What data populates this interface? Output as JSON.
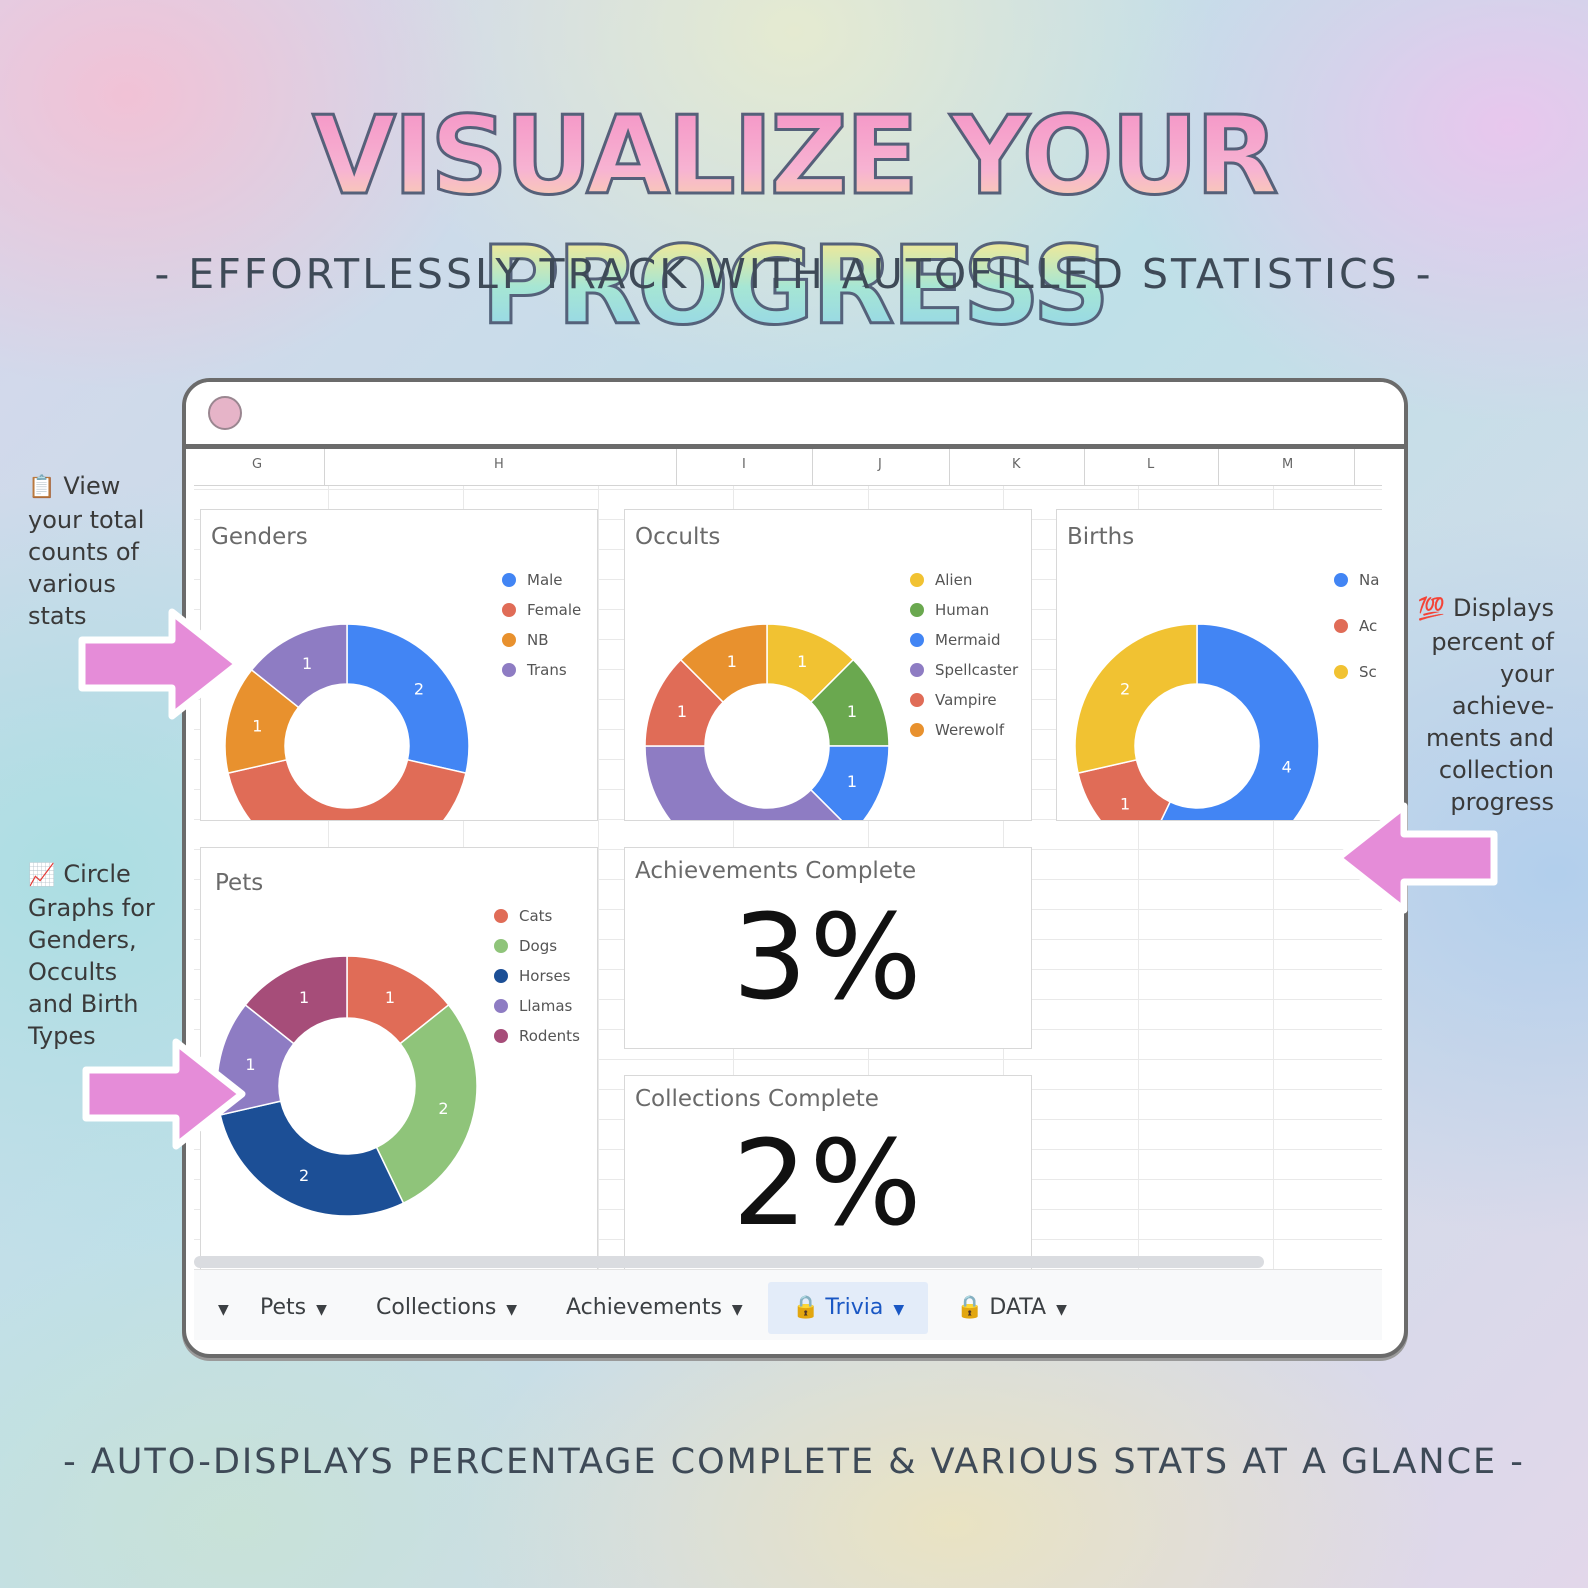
{
  "headline": "VISUALIZE YOUR PROGRESS",
  "subheadline": "- EFFORTLESSLY TRACK WITH AUTOFILLED STATISTICS -",
  "footer": "- AUTO-DISPLAYS PERCENTAGE COMPLETE & VARIOUS STATS AT A GLANCE -",
  "notes": {
    "view": {
      "icon": "clipboard-icon",
      "lines": [
        "View",
        "your total",
        "counts of",
        "various",
        "stats"
      ]
    },
    "circle": {
      "icon": "chart-increasing-icon",
      "lines": [
        "Circle",
        "Graphs for",
        "Genders,",
        "Occults",
        "and Birth",
        "Types"
      ]
    },
    "displays": {
      "icon": "hundred-points-icon",
      "lines": [
        "Displays",
        "percent of",
        "your",
        "achieve-",
        "ments and",
        "collection",
        "progress"
      ]
    }
  },
  "sheet": {
    "columns": [
      "G",
      "H",
      "I",
      "J",
      "K",
      "L",
      "M"
    ]
  },
  "tabs": [
    {
      "label": "",
      "locked": false,
      "active": false
    },
    {
      "label": "Pets",
      "locked": false,
      "active": false
    },
    {
      "label": "Collections",
      "locked": false,
      "active": false
    },
    {
      "label": "Achievements",
      "locked": false,
      "active": false
    },
    {
      "label": "Trivia",
      "locked": true,
      "active": true
    },
    {
      "label": "DATA",
      "locked": true,
      "active": false
    }
  ],
  "colors": {
    "accent_tab": "#1a57c4",
    "arrow": "#e58cd8"
  },
  "chart_data": [
    {
      "type": "pie",
      "title": "Genders",
      "donut": true,
      "categories": [
        "Male",
        "Female",
        "NB",
        "Trans"
      ],
      "values": [
        2,
        3,
        1,
        1
      ],
      "colors": [
        "#4285f4",
        "#e06c57",
        "#e8912e",
        "#8e7cc3"
      ],
      "legend": "right"
    },
    {
      "type": "pie",
      "title": "Occults",
      "donut": true,
      "categories": [
        "Alien",
        "Human",
        "Mermaid",
        "Spellcaster",
        "Vampire",
        "Werewolf"
      ],
      "values": [
        1,
        1,
        1,
        3,
        1,
        1
      ],
      "colors": [
        "#f1c232",
        "#6aa84f",
        "#4285f4",
        "#8e7cc3",
        "#e06c57",
        "#e8912e"
      ],
      "legend": "right"
    },
    {
      "type": "pie",
      "title": "Births",
      "donut": true,
      "categories": [
        "Na bo",
        "Ac",
        "Sc Bi"
      ],
      "values": [
        4,
        1,
        2
      ],
      "colors": [
        "#4285f4",
        "#e06c57",
        "#f1c232"
      ],
      "legend": "right"
    },
    {
      "type": "pie",
      "title": "Pets",
      "donut": true,
      "categories": [
        "Cats",
        "Dogs",
        "Horses",
        "Llamas",
        "Rodents"
      ],
      "values": [
        1,
        2,
        2,
        1,
        1
      ],
      "colors": [
        "#e06c57",
        "#8fc47a",
        "#1c4f96",
        "#8e7cc3",
        "#a64d79"
      ],
      "legend": "right"
    },
    {
      "type": "table",
      "title": "Achievements Complete",
      "value": "3%"
    },
    {
      "type": "table",
      "title": "Collections Complete",
      "value": "2%"
    }
  ]
}
